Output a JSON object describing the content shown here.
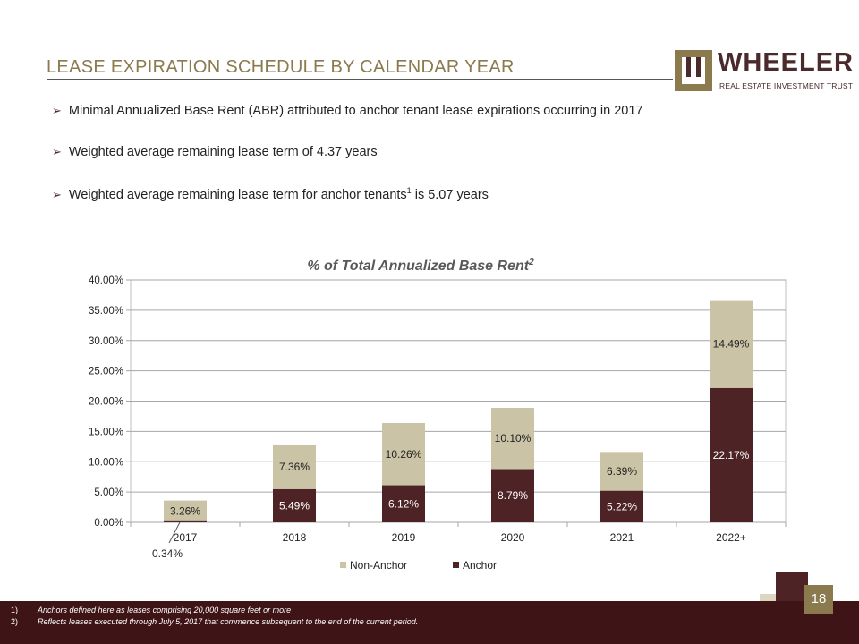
{
  "slide": {
    "title": "LEASE EXPIRATION SCHEDULE BY CALENDAR YEAR",
    "page_number": "18"
  },
  "logo": {
    "name": "WHEELER",
    "subtitle": "REAL ESTATE INVESTMENT TRUST"
  },
  "bullets": [
    {
      "text": "Minimal Annualized Base Rent (ABR) attributed to anchor tenant lease expirations occurring in 2017",
      "sup": ""
    },
    {
      "text": "Weighted average remaining lease term of 4.37 years",
      "sup": ""
    },
    {
      "text_before": "Weighted average remaining lease term for anchor tenants",
      "sup": "1",
      "text_after": " is 5.07 years"
    }
  ],
  "footnotes": [
    {
      "num": "1)",
      "text": "Anchors defined here as leases comprising 20,000 square feet or more"
    },
    {
      "num": "2)",
      "text": "Reflects leases executed through July 5, 2017 that commence subsequent to the end of the current period."
    }
  ],
  "colors": {
    "anchor": "#4e2326",
    "non_anchor": "#cbc3a6",
    "accent": "#8b7a4e",
    "footer": "#3f1416"
  },
  "chart_data": {
    "type": "bar",
    "stacked": true,
    "title": "% of Total Annualized Base Rent",
    "title_sup": "2",
    "categories": [
      "2017",
      "2018",
      "2019",
      "2020",
      "2021",
      "2022+"
    ],
    "series": [
      {
        "name": "Anchor",
        "values": [
          0.34,
          5.49,
          6.12,
          8.79,
          5.22,
          22.17
        ],
        "labels": [
          "0.34%",
          "5.49%",
          "6.12%",
          "8.79%",
          "5.22%",
          "22.17%"
        ]
      },
      {
        "name": "Non-Anchor",
        "values": [
          3.26,
          7.36,
          10.26,
          10.1,
          6.39,
          14.49
        ],
        "labels": [
          "3.26%",
          "7.36%",
          "10.26%",
          "10.10%",
          "6.39%",
          "14.49%"
        ]
      }
    ],
    "legend": [
      "Non-Anchor",
      "Anchor"
    ],
    "ylim": [
      0,
      40
    ],
    "yticks": [
      0,
      5,
      10,
      15,
      20,
      25,
      30,
      35,
      40
    ],
    "ytick_labels": [
      "0.00%",
      "5.00%",
      "10.00%",
      "15.00%",
      "20.00%",
      "25.00%",
      "30.00%",
      "35.00%",
      "40.00%"
    ],
    "grid": true,
    "legend_position": "bottom"
  }
}
